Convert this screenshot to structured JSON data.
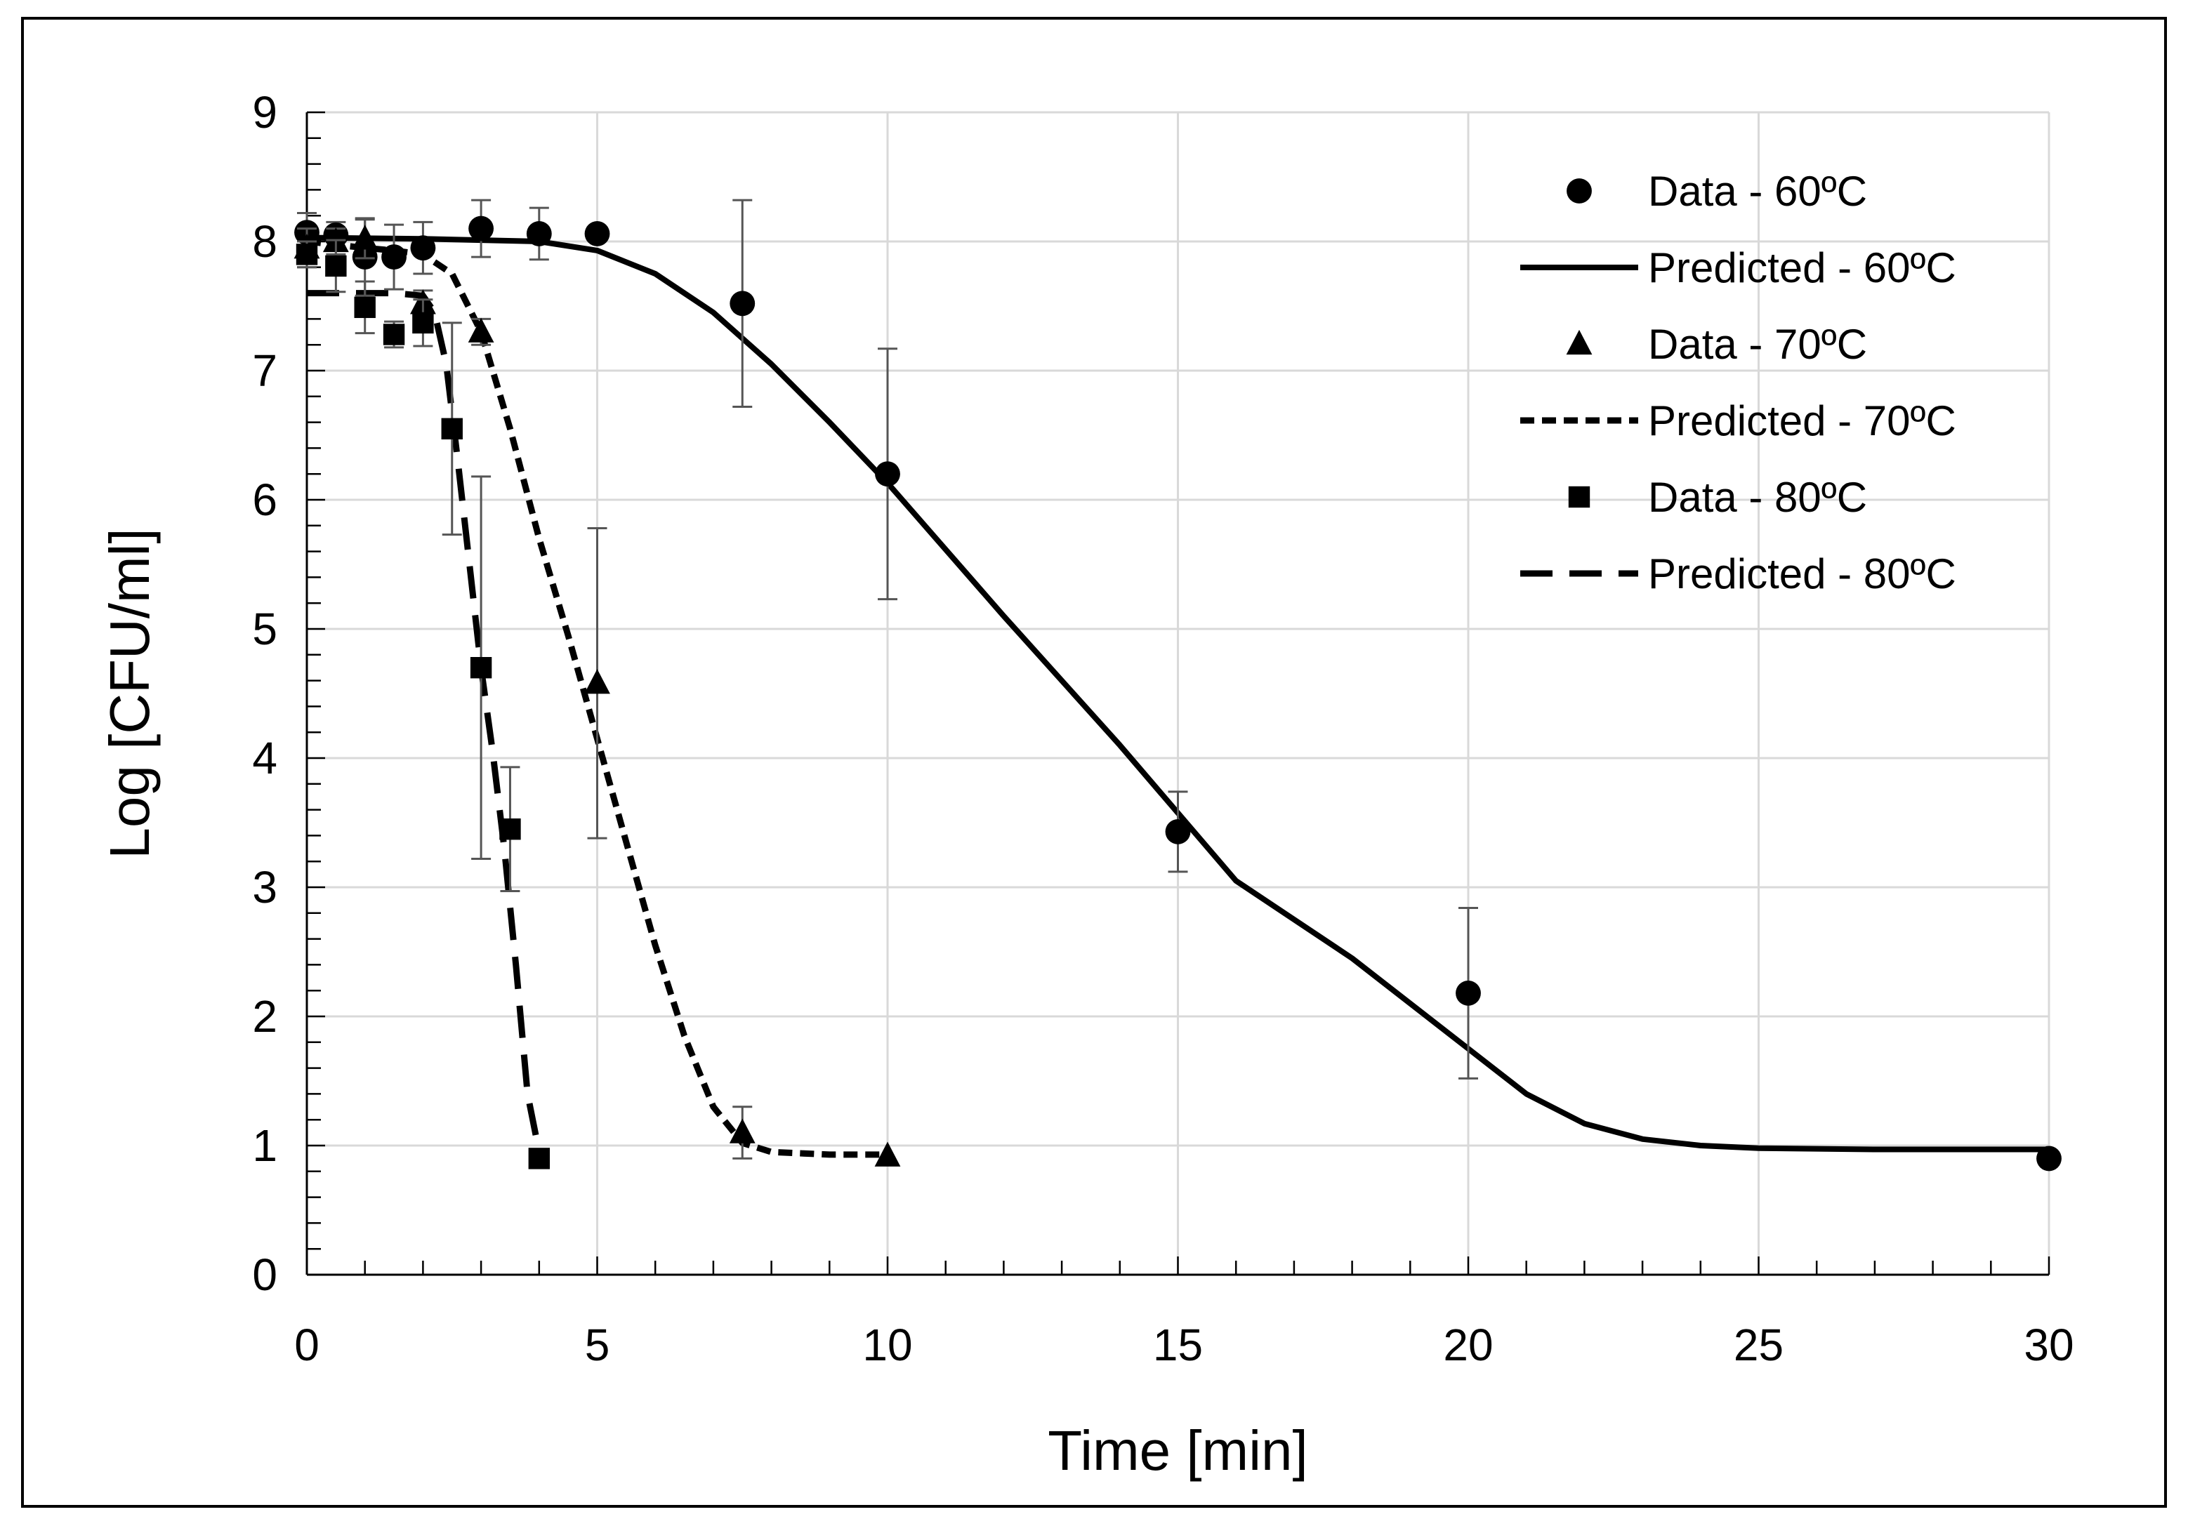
{
  "chart_data": {
    "type": "scatter",
    "title": "",
    "xlabel": "Time [min]",
    "ylabel": "Log [CFU/ml]",
    "xlim": [
      0,
      30
    ],
    "ylim": [
      0,
      9
    ],
    "xticks": [
      0,
      5,
      10,
      15,
      20,
      25,
      30
    ],
    "yticks": [
      0,
      1,
      2,
      3,
      4,
      5,
      6,
      7,
      8,
      9
    ],
    "grid": true,
    "legend_position": "top-right",
    "series": [
      {
        "name": "Data - 60ºC",
        "kind": "markers",
        "marker": "circle",
        "color": "#000000",
        "x": [
          0,
          0.5,
          1,
          1.5,
          2,
          3,
          4,
          5,
          7.5,
          10,
          15,
          20,
          30
        ],
        "y": [
          8.07,
          8.05,
          7.88,
          7.88,
          7.95,
          8.1,
          8.06,
          8.06,
          7.52,
          6.2,
          3.43,
          2.18,
          0.9
        ],
        "yerr": [
          0.15,
          0.1,
          0.3,
          0.25,
          0.2,
          0.22,
          0.2,
          0,
          0.8,
          0.97,
          0.31,
          0.66,
          0
        ]
      },
      {
        "name": "Predicted - 60ºC",
        "kind": "line",
        "dash": "solid",
        "color": "#000000",
        "x": [
          0,
          2,
          4,
          5,
          6,
          7,
          8,
          9,
          10,
          12,
          14,
          16,
          18,
          20,
          21,
          22,
          23,
          24,
          25,
          27,
          30
        ],
        "y": [
          8.03,
          8.02,
          8.0,
          7.93,
          7.75,
          7.45,
          7.05,
          6.6,
          6.13,
          5.1,
          4.1,
          3.05,
          2.45,
          1.75,
          1.4,
          1.17,
          1.05,
          1.0,
          0.98,
          0.97,
          0.97
        ]
      },
      {
        "name": "Data - 70ºC",
        "kind": "markers",
        "marker": "triangle",
        "color": "#000000",
        "x": [
          0,
          0.5,
          1,
          2,
          3,
          5,
          7.5,
          10
        ],
        "y": [
          7.95,
          8.0,
          8.02,
          7.52,
          7.3,
          4.58,
          1.1,
          0.92
        ],
        "yerr": [
          0.15,
          0.1,
          0.15,
          0.1,
          0.1,
          1.2,
          0.2,
          0
        ]
      },
      {
        "name": "Predicted - 70ºC",
        "kind": "line",
        "dash": "short-dash",
        "color": "#000000",
        "x": [
          0,
          1,
          1.5,
          2,
          2.5,
          3,
          3.5,
          4,
          4.5,
          5,
          5.5,
          6,
          6.5,
          7,
          7.5,
          8,
          9,
          10
        ],
        "y": [
          8.0,
          7.95,
          7.93,
          7.9,
          7.75,
          7.3,
          6.55,
          5.7,
          4.95,
          4.15,
          3.35,
          2.55,
          1.85,
          1.3,
          1.02,
          0.95,
          0.93,
          0.93
        ]
      },
      {
        "name": "Data - 80ºC",
        "kind": "markers",
        "marker": "square",
        "color": "#000000",
        "x": [
          0,
          0.5,
          1,
          1.5,
          2,
          2.5,
          3,
          3.5,
          4
        ],
        "y": [
          7.9,
          7.81,
          7.49,
          7.28,
          7.37,
          6.55,
          4.7,
          3.45,
          0.9
        ],
        "yerr": [
          0.1,
          0.2,
          0.2,
          0.1,
          0.18,
          0.82,
          1.48,
          0.48,
          0
        ]
      },
      {
        "name": "Predicted - 80ºC",
        "kind": "line",
        "dash": "long-dash",
        "color": "#000000",
        "x": [
          0,
          1,
          1.5,
          2,
          2.2,
          2.4,
          2.6,
          2.8,
          3.0,
          3.2,
          3.4,
          3.6,
          3.8,
          4.0
        ],
        "y": [
          7.6,
          7.6,
          7.6,
          7.58,
          7.45,
          7.05,
          6.3,
          5.5,
          4.7,
          4.05,
          3.3,
          2.4,
          1.4,
          0.95
        ]
      }
    ]
  }
}
